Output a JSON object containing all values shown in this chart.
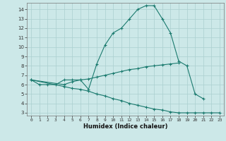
{
  "xlabel": "Humidex (Indice chaleur)",
  "bg_color": "#cce8e8",
  "line_color": "#1a7a6e",
  "grid_color": "#aacfcf",
  "xlim": [
    -0.5,
    23.5
  ],
  "ylim": [
    2.7,
    14.7
  ],
  "yticks": [
    3,
    4,
    5,
    6,
    7,
    8,
    9,
    10,
    11,
    12,
    13,
    14
  ],
  "xticks": [
    0,
    1,
    2,
    3,
    4,
    5,
    6,
    7,
    8,
    9,
    10,
    11,
    12,
    13,
    14,
    15,
    16,
    17,
    18,
    19,
    20,
    21,
    22,
    23
  ],
  "curve1_x": [
    0,
    1,
    2,
    3,
    4,
    5,
    6,
    7,
    8,
    9,
    10,
    11,
    12,
    13,
    14,
    15,
    16,
    17,
    18,
    19,
    20,
    21
  ],
  "curve1_y": [
    6.5,
    6.0,
    6.0,
    6.0,
    6.5,
    6.5,
    6.5,
    5.5,
    8.2,
    10.2,
    11.5,
    12.0,
    13.0,
    14.0,
    14.4,
    14.4,
    13.0,
    11.5,
    8.5,
    8.0,
    5.0,
    4.5
  ],
  "curve2_x": [
    0,
    4,
    5,
    6,
    7,
    8,
    9,
    10,
    11,
    12,
    13,
    14,
    15,
    16,
    17,
    18
  ],
  "curve2_y": [
    6.5,
    6.0,
    6.3,
    6.5,
    6.6,
    6.8,
    7.0,
    7.2,
    7.4,
    7.6,
    7.7,
    7.9,
    8.0,
    8.1,
    8.2,
    8.3
  ],
  "curve3_x": [
    0,
    4,
    5,
    6,
    7,
    8,
    9,
    10,
    11,
    12,
    13,
    14,
    15,
    16,
    17,
    18,
    19,
    20,
    21,
    22,
    23
  ],
  "curve3_y": [
    6.5,
    5.8,
    5.6,
    5.5,
    5.3,
    5.0,
    4.8,
    4.5,
    4.3,
    4.0,
    3.8,
    3.6,
    3.4,
    3.3,
    3.1,
    3.0,
    3.0,
    3.0,
    3.0,
    3.0,
    3.0
  ]
}
